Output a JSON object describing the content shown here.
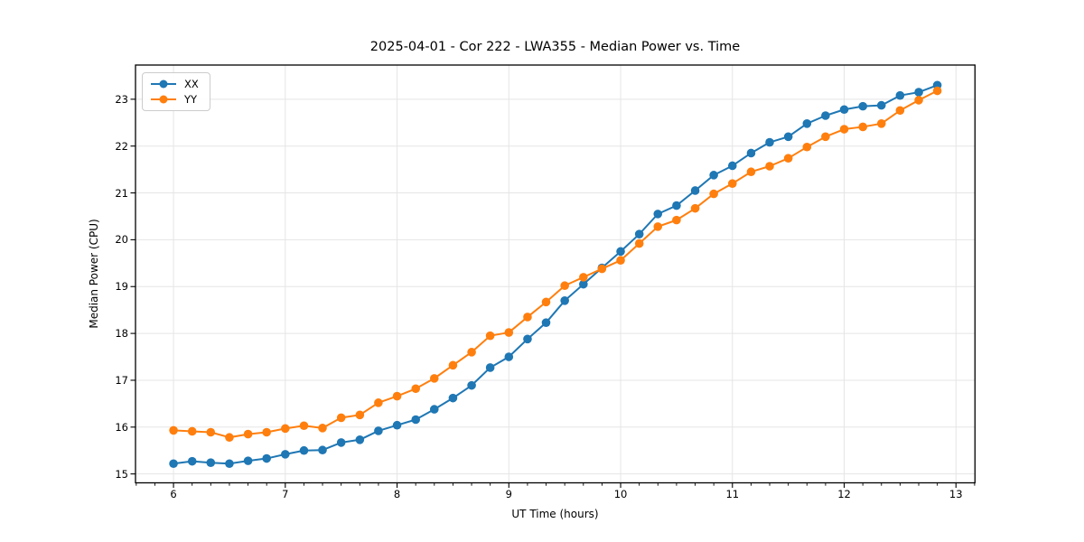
{
  "chart_data": {
    "type": "line",
    "title": "2025-04-01 - Cor 222 - LWA355 - Median Power vs. Time",
    "xlabel": "UT Time (hours)",
    "ylabel": "Median Power (CPU)",
    "xlim": [
      5.66,
      13.17
    ],
    "ylim": [
      14.81,
      23.73
    ],
    "xticks": [
      6,
      7,
      8,
      9,
      10,
      11,
      12,
      13
    ],
    "yticks": [
      15,
      16,
      17,
      18,
      19,
      20,
      21,
      22,
      23
    ],
    "x_minor_step": 0.166667,
    "grid": true,
    "grid_color": "#e5e5e5",
    "spine_color": "#000000",
    "legend_position": "upper-left",
    "x": [
      6.0,
      6.167,
      6.333,
      6.5,
      6.667,
      6.833,
      7.0,
      7.167,
      7.333,
      7.5,
      7.667,
      7.833,
      8.0,
      8.167,
      8.333,
      8.5,
      8.667,
      8.833,
      9.0,
      9.167,
      9.333,
      9.5,
      9.667,
      9.833,
      10.0,
      10.167,
      10.333,
      10.5,
      10.667,
      10.833,
      11.0,
      11.167,
      11.333,
      11.5,
      11.667,
      11.833,
      12.0,
      12.167,
      12.333,
      12.5,
      12.667,
      12.833
    ],
    "series": [
      {
        "name": "XX",
        "color": "#1f77b4",
        "values": [
          15.22,
          15.27,
          15.24,
          15.22,
          15.28,
          15.33,
          15.42,
          15.5,
          15.51,
          15.67,
          15.73,
          15.92,
          16.04,
          16.16,
          16.38,
          16.62,
          16.89,
          17.27,
          17.5,
          17.88,
          18.23,
          18.7,
          19.05,
          19.4,
          19.75,
          20.12,
          20.55,
          20.73,
          21.05,
          21.38,
          21.58,
          21.85,
          22.08,
          22.2,
          22.48,
          22.65,
          22.78,
          22.85,
          22.87,
          23.08,
          23.15,
          23.3
        ]
      },
      {
        "name": "YY",
        "color": "#ff7f0e",
        "values": [
          15.93,
          15.91,
          15.89,
          15.78,
          15.85,
          15.89,
          15.97,
          16.03,
          15.98,
          16.2,
          16.26,
          16.52,
          16.66,
          16.82,
          17.04,
          17.32,
          17.6,
          17.95,
          18.02,
          18.35,
          18.67,
          19.02,
          19.2,
          19.38,
          19.56,
          19.92,
          20.28,
          20.42,
          20.67,
          20.98,
          21.2,
          21.45,
          21.57,
          21.74,
          21.98,
          22.2,
          22.36,
          22.41,
          22.48,
          22.76,
          22.98,
          23.18
        ]
      }
    ]
  }
}
